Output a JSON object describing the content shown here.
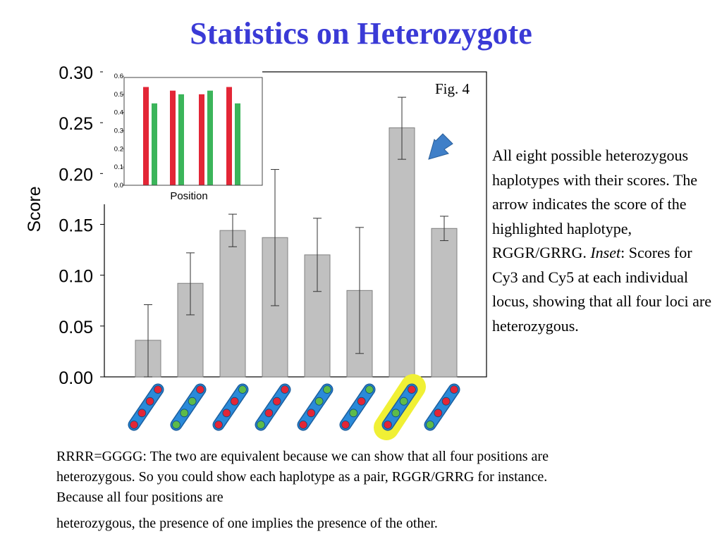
{
  "slide": {
    "title": "Statistics on Heterozygote",
    "fig_label": "Fig. 4",
    "side_text": {
      "part1": "All eight possible heterozygous haplotypes with their scores.  The arrow indicates the score of the highlighted haplotype, RGGR/GRRG.",
      "inset_word": "Inset",
      "part2": ": Scores for Cy3 and Cy5 at each individual locus, showing that all four loci are heterozygous."
    },
    "bottom_text": {
      "line1": "RRRR=GGGG: The two are equivalent because we can show that all four positions are heterozygous. So you could show each haplotype as a pair, RGGR/GRRG for instance. Because all four positions are",
      "line2": "heterozygous, the presence of one implies the presence of the other."
    }
  },
  "chart_data": [
    {
      "type": "bar",
      "ylabel": "Score",
      "ylim": [
        0,
        0.3
      ],
      "yticks": [
        "0.00",
        "0.05",
        "0.10",
        "0.15",
        "0.20",
        "0.25",
        "0.30"
      ],
      "values": [
        0.036,
        0.092,
        0.144,
        0.137,
        0.12,
        0.085,
        0.245,
        0.146
      ],
      "error_low": [
        0.0,
        0.061,
        0.128,
        0.07,
        0.084,
        0.023,
        0.214,
        0.134
      ],
      "error_high": [
        0.071,
        0.122,
        0.16,
        0.204,
        0.156,
        0.147,
        0.275,
        0.158
      ],
      "haplotypes": [
        "RRRR",
        "GGGR",
        "RRRG",
        "GRRR",
        "RRGG",
        "RGRG",
        "RGGR",
        "GRRR"
      ],
      "highlighted_index": 6,
      "colors": {
        "bar": "#c0c0c0",
        "bar_edge": "#808080",
        "highlight": "#f0f035",
        "arrow": "#3f7fc8",
        "bead_red": "#e32636",
        "bead_green": "#5dbb4a",
        "rod": "#2a8ad9"
      }
    },
    {
      "type": "bar",
      "xlabel": "Position",
      "ylim": [
        0,
        0.6
      ],
      "yticks": [
        "0.0",
        "0.1",
        "0.2",
        "0.3",
        "0.4",
        "0.5",
        "0.6"
      ],
      "series": [
        {
          "values": [
            0.54,
            0.52,
            0.5,
            0.54
          ],
          "color": "#e32636"
        },
        {
          "values": [
            0.45,
            0.5,
            0.52,
            0.45
          ],
          "color": "#3bb55a"
        }
      ]
    }
  ]
}
